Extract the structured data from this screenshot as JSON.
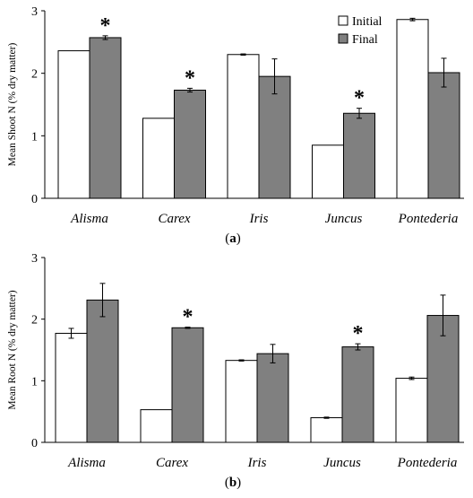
{
  "chart_data": [
    {
      "type": "bar",
      "panel_label": "(a)",
      "categories": [
        "Alisma",
        "Carex",
        "Iris",
        "Juncus",
        "Pontederia"
      ],
      "category_style": "italic",
      "ylabel": "Mean Shoot N (% dry matter)",
      "ylim": [
        0,
        3
      ],
      "yticks": [
        "0",
        "1",
        "2",
        "3"
      ],
      "legend": {
        "placement": "top-right",
        "entries": [
          "Initial",
          "Final"
        ]
      },
      "series": [
        {
          "name": "Initial",
          "color": "#ffffff",
          "values": [
            2.36,
            1.28,
            2.3,
            0.85,
            2.86
          ],
          "errors": [
            0,
            0,
            0.01,
            0,
            0.02
          ]
        },
        {
          "name": "Final",
          "color": "#808080",
          "values": [
            2.57,
            1.73,
            1.95,
            1.36,
            2.01
          ],
          "errors": [
            0.03,
            0.03,
            0.28,
            0.08,
            0.23
          ]
        }
      ],
      "significance_marker": "*",
      "significant": [
        true,
        true,
        false,
        true,
        false
      ],
      "grid": false
    },
    {
      "type": "bar",
      "panel_label": "(b)",
      "categories": [
        "Alisma",
        "Carex",
        "Iris",
        "Juncus",
        "Pontederia"
      ],
      "category_style": "italic",
      "ylabel": "Mean Root N (% dry matter)",
      "ylim": [
        0,
        3
      ],
      "yticks": [
        "0",
        "1",
        "2",
        "3"
      ],
      "series": [
        {
          "name": "Initial",
          "color": "#ffffff",
          "values": [
            1.77,
            0.53,
            1.33,
            0.4,
            1.04
          ],
          "errors": [
            0.08,
            0,
            0.01,
            0.01,
            0.02
          ]
        },
        {
          "name": "Final",
          "color": "#808080",
          "values": [
            2.31,
            1.86,
            1.44,
            1.55,
            2.06
          ],
          "errors": [
            0.27,
            0.01,
            0.15,
            0.05,
            0.33
          ]
        }
      ],
      "significance_marker": "*",
      "significant": [
        false,
        true,
        false,
        true,
        false
      ],
      "grid": false
    }
  ]
}
